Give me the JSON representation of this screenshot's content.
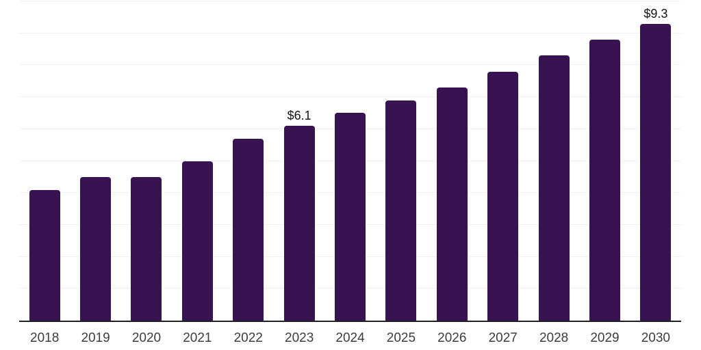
{
  "chart_data": {
    "type": "bar",
    "categories": [
      "2018",
      "2019",
      "2020",
      "2021",
      "2022",
      "2023",
      "2024",
      "2025",
      "2026",
      "2027",
      "2028",
      "2029",
      "2030"
    ],
    "values": [
      4.1,
      4.5,
      4.5,
      5.0,
      5.7,
      6.1,
      6.5,
      6.9,
      7.3,
      7.8,
      8.3,
      8.8,
      9.3
    ],
    "data_labels": [
      "",
      "",
      "",
      "",
      "",
      "$6.1",
      "",
      "",
      "",
      "",
      "",
      "",
      "$9.3"
    ],
    "ylim": [
      0,
      10
    ],
    "grid_step": 1,
    "grid": "horizontal",
    "legend": "none",
    "colors": {
      "bar": "#371352",
      "axis_line": "#1f1f1f",
      "gridline": "#f1f1f1",
      "tick_label": "#3d3d3d",
      "data_label": "#141414"
    }
  }
}
